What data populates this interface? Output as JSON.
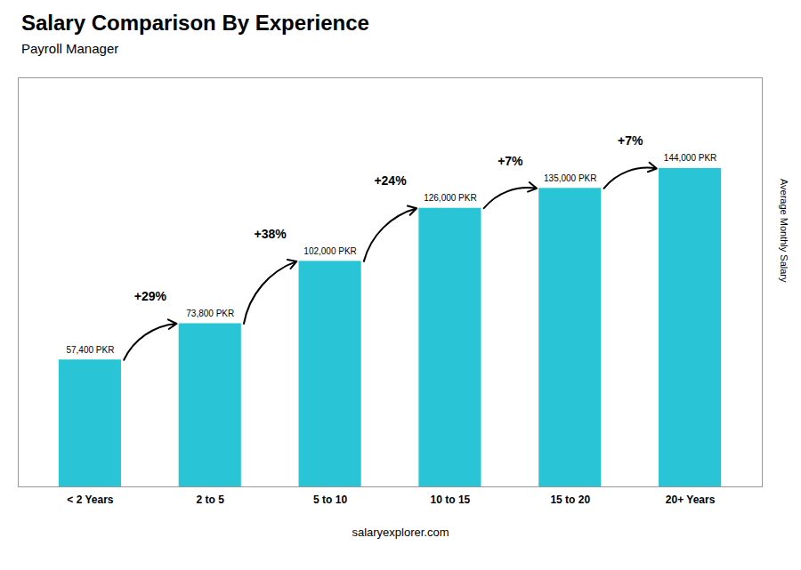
{
  "chart_data": {
    "type": "bar",
    "title": "Salary Comparison By Experience",
    "subtitle": "Payroll Manager",
    "categories": [
      "< 2 Years",
      "2 to 5",
      "5 to 10",
      "10 to 15",
      "15 to 20",
      "20+ Years"
    ],
    "values": [
      57400,
      73800,
      102000,
      126000,
      135000,
      144000
    ],
    "value_labels": [
      "57,400 PKR",
      "73,800 PKR",
      "102,000 PKR",
      "126,000 PKR",
      "135,000 PKR",
      "144,000 PKR"
    ],
    "data_labels": true,
    "color": "#29c5d6",
    "ylabel": "Average Monthly Salary",
    "ylim": [
      0,
      185000
    ],
    "tick_labels": "x",
    "grid": false,
    "annotations": [
      "+29%",
      "+38%",
      "+24%",
      "+7%",
      "+7%"
    ],
    "caption": "salaryexplorer.com"
  }
}
